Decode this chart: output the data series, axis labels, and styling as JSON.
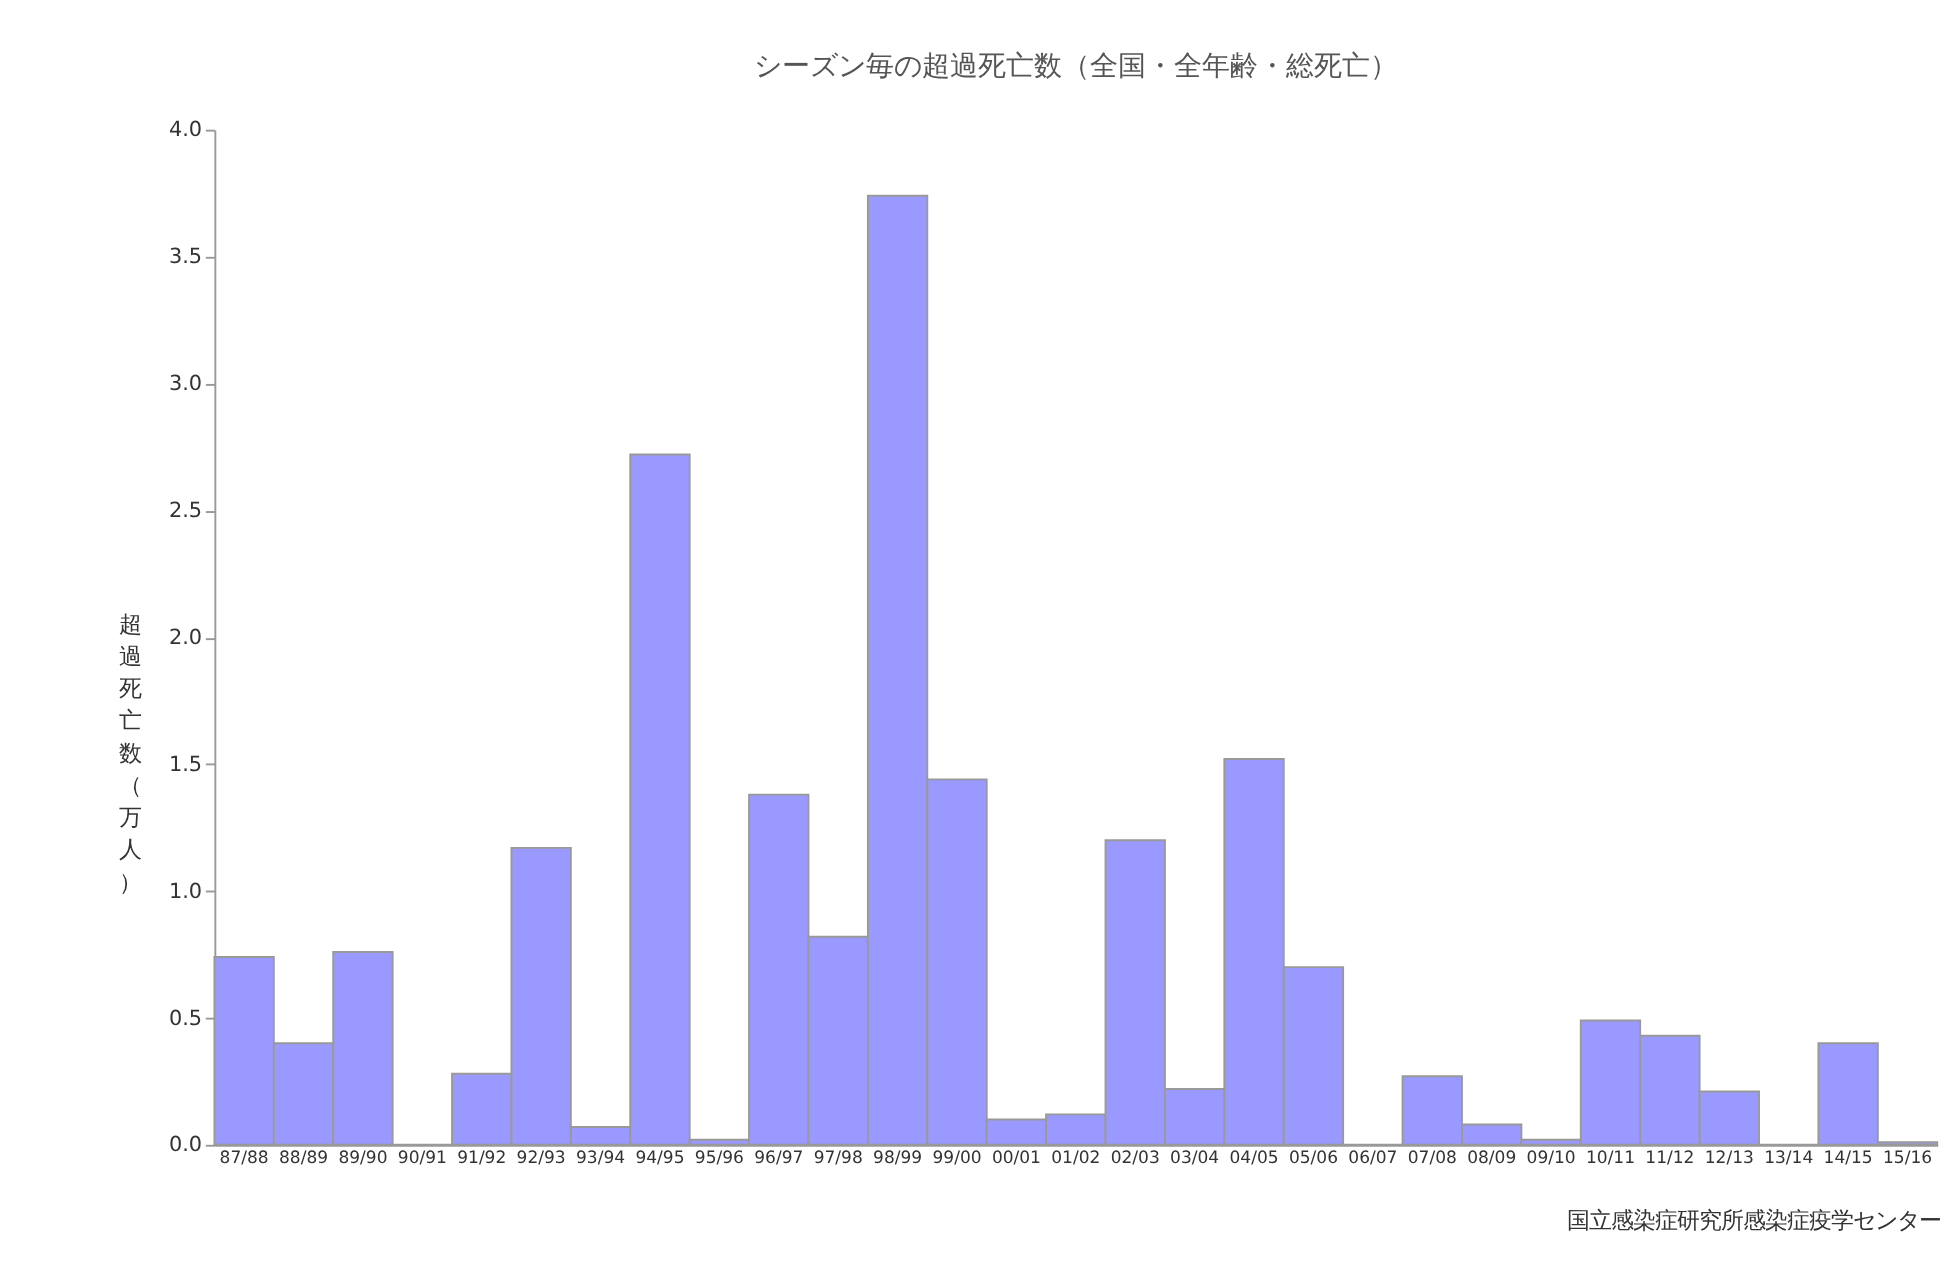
{
  "chart_data": {
    "type": "bar",
    "title": "シーズン毎の超過死亡数（全国・全年齢・総死亡）",
    "ylabel": "超過死亡数（万人）",
    "categories": [
      "87/88",
      "88/89",
      "89/90",
      "90/91",
      "91/92",
      "92/93",
      "93/94",
      "94/95",
      "95/96",
      "96/97",
      "97/98",
      "98/99",
      "99/00",
      "00/01",
      "01/02",
      "02/03",
      "03/04",
      "04/05",
      "05/06",
      "06/07",
      "07/08",
      "08/09",
      "09/10",
      "10/11",
      "11/12",
      "12/13",
      "13/14",
      "14/15",
      "15/16"
    ],
    "values": [
      0.74,
      0.4,
      0.76,
      0,
      0.28,
      1.17,
      0.07,
      2.72,
      0.02,
      1.38,
      0.82,
      3.74,
      1.44,
      0.1,
      0.12,
      1.2,
      0.22,
      1.52,
      0.7,
      0,
      0.27,
      0.08,
      0.02,
      0.49,
      0.43,
      0.21,
      0,
      0.4,
      0.01
    ],
    "color": "#9999ff",
    "ylim": [
      0,
      4.0
    ],
    "yticks": [
      {
        "value": 0,
        "label": "0.0"
      },
      {
        "value": 0.5,
        "label": "0.5"
      },
      {
        "value": 1,
        "label": "1.0"
      },
      {
        "value": 1.5,
        "label": "1.5"
      },
      {
        "value": 2,
        "label": "2.0"
      },
      {
        "value": 2.5,
        "label": "2.5"
      },
      {
        "value": 3,
        "label": "3.0"
      },
      {
        "value": 3.5,
        "label": "3.5"
      },
      {
        "value": 4,
        "label": "4.0"
      }
    ],
    "annotations": [
      "国立感染症研究所感染症疫学センター"
    ]
  }
}
